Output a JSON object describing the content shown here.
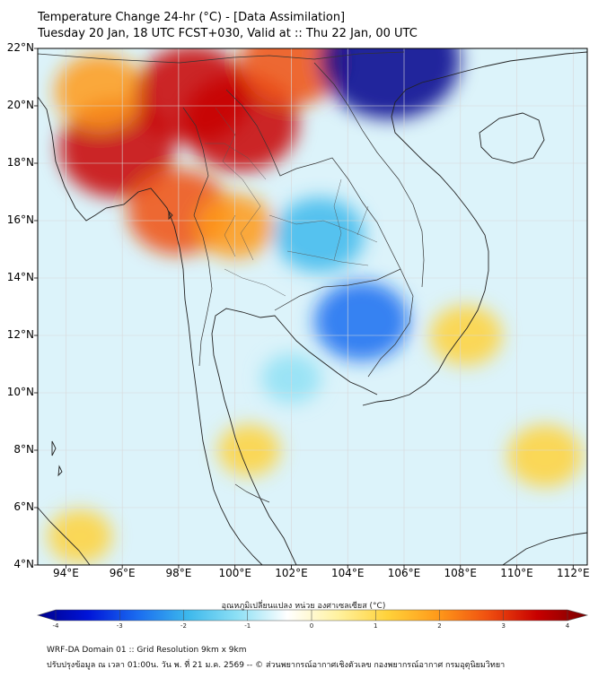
{
  "title": {
    "line1": "Temperature Change 24-hr (°C) - [Data Assimilation]",
    "line2": "Tuesday 20 Jan, 18 UTC FCST+030, Valid at :: Thu 22 Jan, 00 UTC"
  },
  "map": {
    "lat_range": [
      4,
      22
    ],
    "lon_range": [
      93,
      112.5
    ],
    "lat_labels": [
      "22°N",
      "20°N",
      "18°N",
      "16°N",
      "14°N",
      "12°N",
      "10°N",
      "8°N",
      "6°N",
      "4°N"
    ],
    "lon_labels": [
      "94°E",
      "96°E",
      "98°E",
      "100°E",
      "102°E",
      "104°E",
      "106°E",
      "108°E",
      "110°E",
      "112°E"
    ],
    "field": [
      {
        "name": "warm-myanmar-west",
        "lon": 95.8,
        "lat": 18.5,
        "value": 3.0
      },
      {
        "name": "warm-myanmar-north",
        "lon": 95.2,
        "lat": 20.5,
        "value": 2.0
      },
      {
        "name": "warm-myanmar-central",
        "lon": 98.5,
        "lat": 20.4,
        "value": 3.0
      },
      {
        "name": "warm-thai-north",
        "lon": 100.2,
        "lat": 19.4,
        "value": 3.0
      },
      {
        "name": "warm-myanmar-south",
        "lon": 98.0,
        "lat": 16.3,
        "value": 2.5
      },
      {
        "name": "warm-laos-north",
        "lon": 102.0,
        "lat": 21.5,
        "value": 2.5
      },
      {
        "name": "warm-thai-west",
        "lon": 100.0,
        "lat": 15.8,
        "value": 1.5
      },
      {
        "name": "cold-gulf-of-tonkin",
        "lon": 105.5,
        "lat": 21.6,
        "value": -4.0
      },
      {
        "name": "cold-isaan",
        "lon": 103.0,
        "lat": 15.5,
        "value": -2.0
      },
      {
        "name": "cold-cambodia",
        "lon": 104.5,
        "lat": 12.5,
        "value": -2.2
      },
      {
        "name": "warm-vietnam-coast",
        "lon": 108.2,
        "lat": 12.0,
        "value": 1.3
      },
      {
        "name": "warm-south-china-sea",
        "lon": 111.0,
        "lat": 7.8,
        "value": 1.4
      },
      {
        "name": "cold-gulf-thailand",
        "lon": 102.0,
        "lat": 10.5,
        "value": -0.8
      },
      {
        "name": "warm-malay-north",
        "lon": 100.5,
        "lat": 8.0,
        "value": 0.9
      },
      {
        "name": "warm-andaman-south",
        "lon": 94.5,
        "lat": 5.0,
        "value": 1.0
      }
    ]
  },
  "colorbar": {
    "title": "อุณหภูมิเปลี่ยนแปลง หน่วย องศาเซลเซียส (°C)",
    "range": [
      -4,
      4
    ],
    "tick_labels": [
      "-4",
      "-3",
      "-2",
      "-1",
      "0",
      "1",
      "2",
      "3",
      "4"
    ],
    "colors": [
      "#00008b",
      "#0014d8",
      "#1a6cf0",
      "#3cb8ec",
      "#8ee0f5",
      "#ffffff",
      "#fff2a0",
      "#ffd23a",
      "#ff9a1a",
      "#f05010",
      "#c80000",
      "#7a0000"
    ]
  },
  "footer": {
    "line1": "WRF-DA Domain 01 :: Grid Resolution 9km x 9km",
    "line2": "ปรับปรุงข้อมูล ณ เวลา 01:00น. วัน พ. ที่ 21 ม.ค. 2569 -- © ส่วนพยากรณ์อากาศเชิงตัวเลข กองพยากรณ์อากาศ กรมอุตุนิยมวิทยา"
  }
}
